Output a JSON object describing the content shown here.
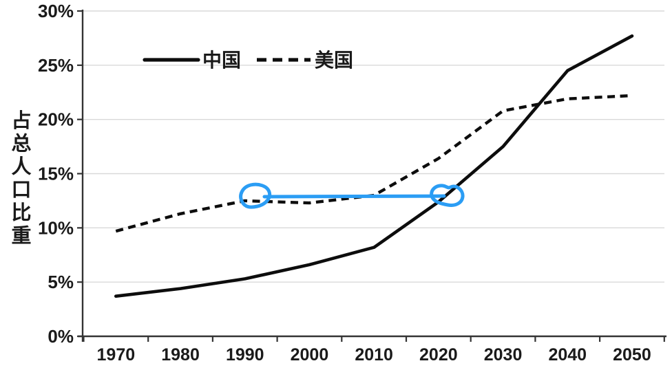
{
  "page": {
    "background_color": "#ffffff",
    "description_labels": {
      "y_axis_title": "占总人口比重",
      "legend_china": "中国",
      "legend_usa": "美国"
    }
  },
  "chart_data": {
    "type": "line",
    "title": "",
    "xlabel": "",
    "ylabel": "占总人口比重",
    "categories": [
      "1970",
      "1980",
      "1990",
      "2000",
      "2010",
      "2020",
      "2030",
      "2040",
      "2050"
    ],
    "series": [
      {
        "name": "中国",
        "style": "solid",
        "color": "#0d0d0d",
        "values": [
          3.7,
          4.4,
          5.3,
          6.6,
          8.2,
          12.4,
          17.5,
          24.5,
          27.7
        ]
      },
      {
        "name": "美国",
        "style": "dashed",
        "color": "#0d0d0d",
        "values": [
          9.7,
          11.3,
          12.5,
          12.3,
          13.0,
          16.4,
          20.8,
          21.9,
          22.2
        ]
      }
    ],
    "ylim": [
      0,
      30
    ],
    "ytick_values": [
      0,
      5,
      10,
      15,
      20,
      25,
      30
    ],
    "ytick_labels": [
      "0%",
      "5%",
      "10%",
      "15%",
      "20%",
      "25%",
      "30%"
    ],
    "grid": true,
    "grid_color": "#d9d9d9",
    "axis_color": "#333333",
    "legend_position": "top-inside",
    "annotation": {
      "type": "hand-drawn-highlight",
      "color": "#2b9df4",
      "connector_value_pct": 13.0,
      "circles": [
        {
          "series": "美国",
          "year": "1990",
          "value_pct": 12.5
        },
        {
          "series": "中国",
          "year": "~2021",
          "value_pct": 13.0
        }
      ],
      "meaning": "China reaches around 2021 the aging share (~13%) that the USA had in 1990"
    }
  }
}
